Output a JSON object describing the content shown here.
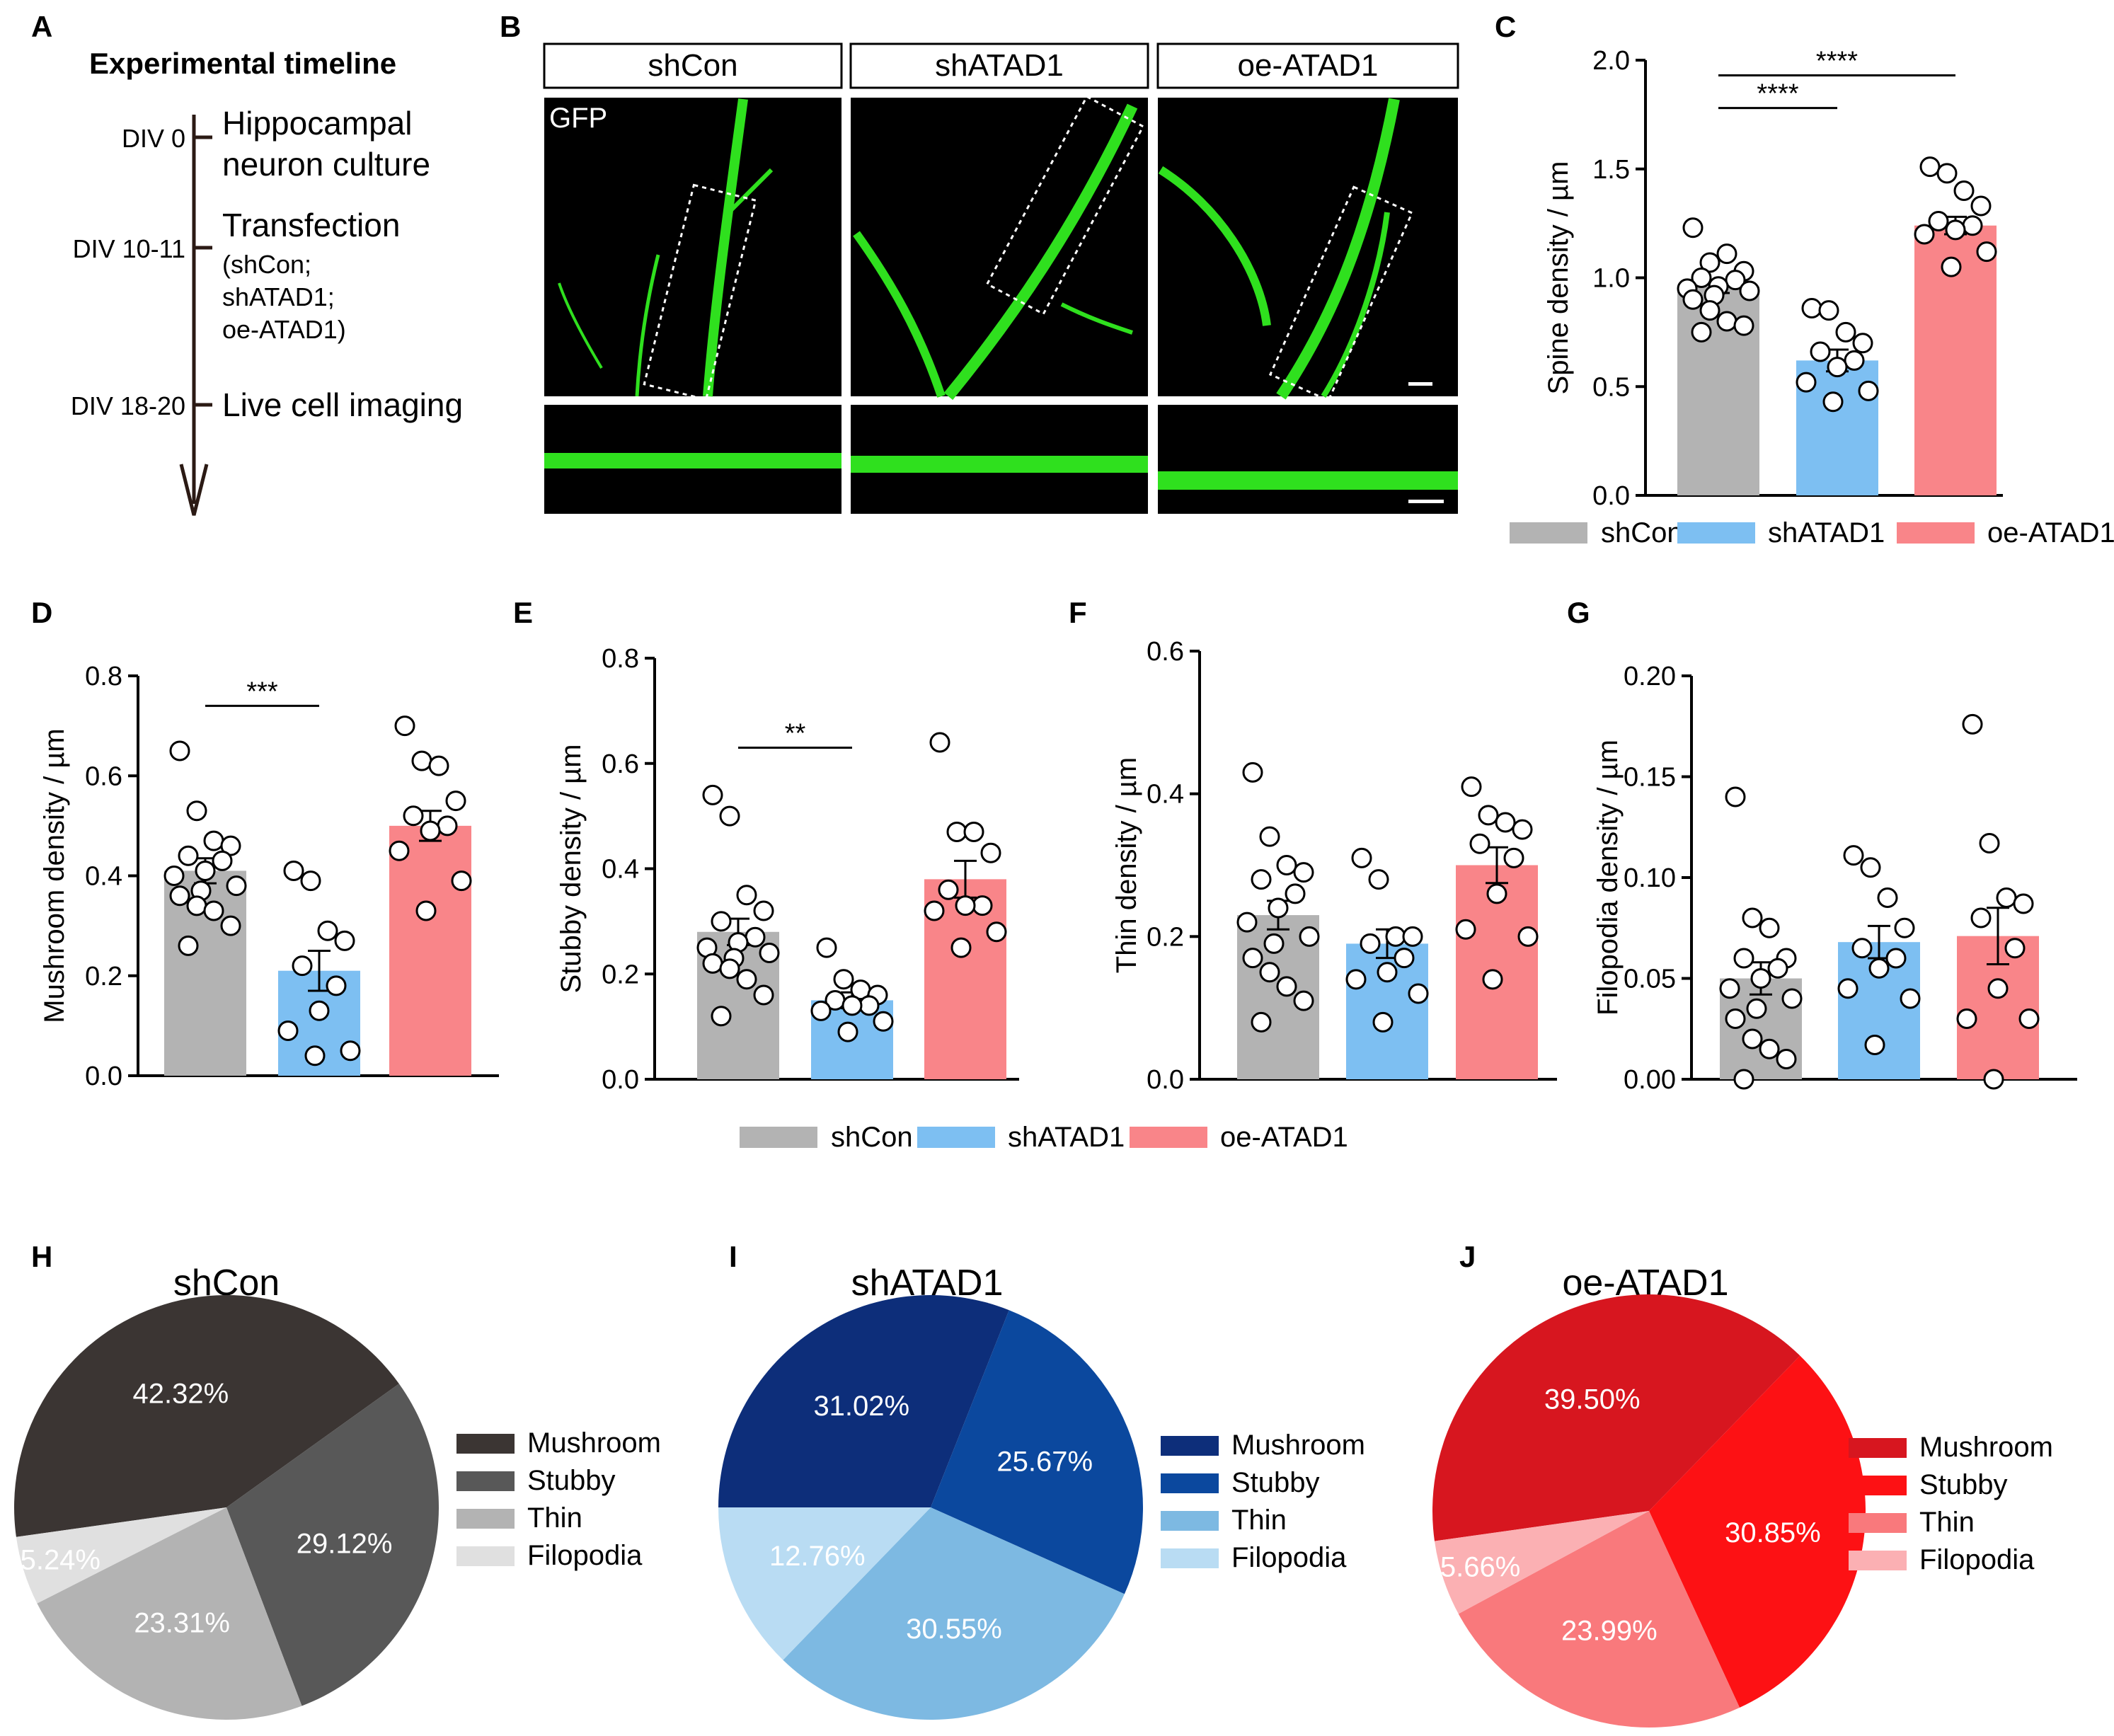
{
  "panel_labels": {
    "A": "A",
    "B": "B",
    "C": "C",
    "D": "D",
    "E": "E",
    "F": "F",
    "G": "G",
    "H": "H",
    "I": "I",
    "J": "J"
  },
  "panelA": {
    "title": "Experimental timeline",
    "events": [
      {
        "day": "DIV 0",
        "lines": [
          "Hippocampal",
          "neuron culture"
        ]
      },
      {
        "day": "DIV 10-11",
        "lines": [
          "Transfection",
          "(shCon;",
          "shATAD1;",
          "oe-ATAD1)"
        ]
      },
      {
        "day": "DIV 18-20",
        "lines": [
          "Live cell imaging"
        ]
      }
    ]
  },
  "panelB": {
    "conditions": [
      "shCon",
      "shATAD1",
      "oe-ATAD1"
    ],
    "stain": "GFP"
  },
  "groups": [
    "shCon",
    "shATAD1",
    "oe-ATAD1"
  ],
  "colors": {
    "shCon": "#b3b3b3",
    "shATAD1": "#7dbff2",
    "oe-ATAD1": "#f98589"
  },
  "chart_data": [
    {
      "id": "C",
      "type": "bar",
      "ylabel": "Spine density / µm",
      "ylim": [
        0,
        2.0
      ],
      "yticks": [
        "0.0",
        "0.5",
        "1.0",
        "1.5",
        "2.0"
      ],
      "categories": [
        "shCon",
        "shATAD1",
        "oe-ATAD1"
      ],
      "values": [
        0.96,
        0.62,
        1.24
      ],
      "sem": [
        0.03,
        0.05,
        0.04
      ],
      "points": [
        [
          1.23,
          1.07,
          1.11,
          1.03,
          1.0,
          0.99,
          0.96,
          0.95,
          0.94,
          0.92,
          0.9,
          0.85,
          0.8,
          0.78,
          0.75
        ],
        [
          0.86,
          0.85,
          0.75,
          0.7,
          0.66,
          0.62,
          0.59,
          0.52,
          0.48,
          0.43
        ],
        [
          1.51,
          1.48,
          1.4,
          1.33,
          1.26,
          1.24,
          1.22,
          1.2,
          1.12,
          1.05
        ]
      ],
      "significance": [
        {
          "from": 0,
          "to": 1,
          "label": "****",
          "y": 1.78
        },
        {
          "from": 0,
          "to": 2,
          "label": "****",
          "y": 1.93
        }
      ],
      "legend": [
        "shCon",
        "shATAD1",
        "oe-ATAD1"
      ]
    },
    {
      "id": "D",
      "type": "bar",
      "ylabel": "Mushroom density / µm",
      "ylim": [
        0,
        0.8
      ],
      "yticks": [
        "0.0",
        "0.2",
        "0.4",
        "0.6",
        "0.8"
      ],
      "categories": [
        "shCon",
        "shATAD1",
        "oe-ATAD1"
      ],
      "values": [
        0.41,
        0.21,
        0.5
      ],
      "sem": [
        0.025,
        0.04,
        0.03
      ],
      "points": [
        [
          0.65,
          0.53,
          0.47,
          0.46,
          0.44,
          0.43,
          0.41,
          0.4,
          0.38,
          0.37,
          0.36,
          0.34,
          0.33,
          0.3,
          0.26
        ],
        [
          0.41,
          0.39,
          0.29,
          0.27,
          0.22,
          0.18,
          0.13,
          0.09,
          0.05,
          0.04
        ],
        [
          0.7,
          0.63,
          0.62,
          0.55,
          0.52,
          0.5,
          0.49,
          0.45,
          0.39,
          0.33
        ]
      ],
      "significance": [
        {
          "from": 0,
          "to": 1,
          "label": "***",
          "y": 0.74
        }
      ]
    },
    {
      "id": "E",
      "type": "bar",
      "ylabel": "Stubby density / µm",
      "ylim": [
        0,
        0.8
      ],
      "yticks": [
        "0.0",
        "0.2",
        "0.4",
        "0.6",
        "0.8"
      ],
      "categories": [
        "shCon",
        "shATAD1",
        "oe-ATAD1"
      ],
      "values": [
        0.28,
        0.15,
        0.38
      ],
      "sem": [
        0.025,
        0.015,
        0.035
      ],
      "points": [
        [
          0.54,
          0.5,
          0.35,
          0.32,
          0.3,
          0.27,
          0.26,
          0.25,
          0.24,
          0.23,
          0.22,
          0.21,
          0.19,
          0.16,
          0.12
        ],
        [
          0.25,
          0.19,
          0.17,
          0.16,
          0.15,
          0.14,
          0.14,
          0.13,
          0.11,
          0.09
        ],
        [
          0.64,
          0.47,
          0.47,
          0.43,
          0.36,
          0.33,
          0.33,
          0.32,
          0.28,
          0.25
        ]
      ],
      "significance": [
        {
          "from": 0,
          "to": 1,
          "label": "**",
          "y": 0.63
        }
      ]
    },
    {
      "id": "F",
      "type": "bar",
      "ylabel": "Thin density / µm",
      "ylim": [
        0,
        0.6
      ],
      "yticks": [
        "0.0",
        "0.2",
        "0.4",
        "0.6"
      ],
      "categories": [
        "shCon",
        "shATAD1",
        "oe-ATAD1"
      ],
      "values": [
        0.23,
        0.19,
        0.3
      ],
      "sem": [
        0.02,
        0.02,
        0.025
      ],
      "points": [
        [
          0.43,
          0.34,
          0.3,
          0.29,
          0.28,
          0.26,
          0.24,
          0.22,
          0.2,
          0.19,
          0.17,
          0.15,
          0.13,
          0.11,
          0.08
        ],
        [
          0.31,
          0.28,
          0.2,
          0.2,
          0.19,
          0.17,
          0.15,
          0.14,
          0.12,
          0.08
        ],
        [
          0.41,
          0.37,
          0.36,
          0.35,
          0.33,
          0.31,
          0.26,
          0.21,
          0.2,
          0.14
        ]
      ],
      "significance": []
    },
    {
      "id": "G",
      "type": "bar",
      "ylabel": "Filopodia density / µm",
      "ylim": [
        0,
        0.2
      ],
      "yticks": [
        "0.00",
        "0.05",
        "0.10",
        "0.15",
        "0.20"
      ],
      "categories": [
        "shCon",
        "shATAD1",
        "oe-ATAD1"
      ],
      "values": [
        0.05,
        0.068,
        0.071
      ],
      "sem": [
        0.008,
        0.008,
        0.014
      ],
      "points": [
        [
          0.14,
          0.08,
          0.075,
          0.06,
          0.06,
          0.055,
          0.05,
          0.045,
          0.04,
          0.035,
          0.03,
          0.02,
          0.015,
          0.01,
          0.0
        ],
        [
          0.111,
          0.105,
          0.09,
          0.075,
          0.065,
          0.06,
          0.055,
          0.045,
          0.04,
          0.017
        ],
        [
          0.176,
          0.117,
          0.09,
          0.087,
          0.08,
          0.065,
          0.045,
          0.03,
          0.03,
          0.0
        ]
      ],
      "significance": [],
      "legend": [
        "shCon",
        "shATAD1",
        "oe-ATAD1"
      ]
    },
    {
      "id": "H",
      "type": "pie",
      "title": "shCon",
      "labels": [
        "Mushroom",
        "Stubby",
        "Thin",
        "Filopodia"
      ],
      "values": [
        42.32,
        29.12,
        23.31,
        5.24
      ],
      "display": [
        "42.32%",
        "29.12%",
        "23.31%",
        "5.24%"
      ],
      "colors": [
        "#3b3533",
        "#585858",
        "#b3b3b3",
        "#e0e0e0"
      ]
    },
    {
      "id": "I",
      "type": "pie",
      "title": "shATAD1",
      "labels": [
        "Mushroom",
        "Stubby",
        "Thin",
        "Filopodia"
      ],
      "values": [
        31.02,
        25.67,
        30.55,
        12.76
      ],
      "display": [
        "31.02%",
        "25.67%",
        "30.55%",
        "12.76%"
      ],
      "colors": [
        "#0d2e7a",
        "#0b489e",
        "#7db9e2",
        "#b9dcf3"
      ]
    },
    {
      "id": "J",
      "type": "pie",
      "title": "oe-ATAD1",
      "labels": [
        "Mushroom",
        "Stubby",
        "Thin",
        "Filopodia"
      ],
      "values": [
        39.5,
        30.85,
        23.99,
        5.66
      ],
      "display": [
        "39.50%",
        "30.85%",
        "23.99%",
        "5.66%"
      ],
      "colors": [
        "#d7161f",
        "#fd1114",
        "#f9797c",
        "#fbb0b3"
      ]
    }
  ]
}
